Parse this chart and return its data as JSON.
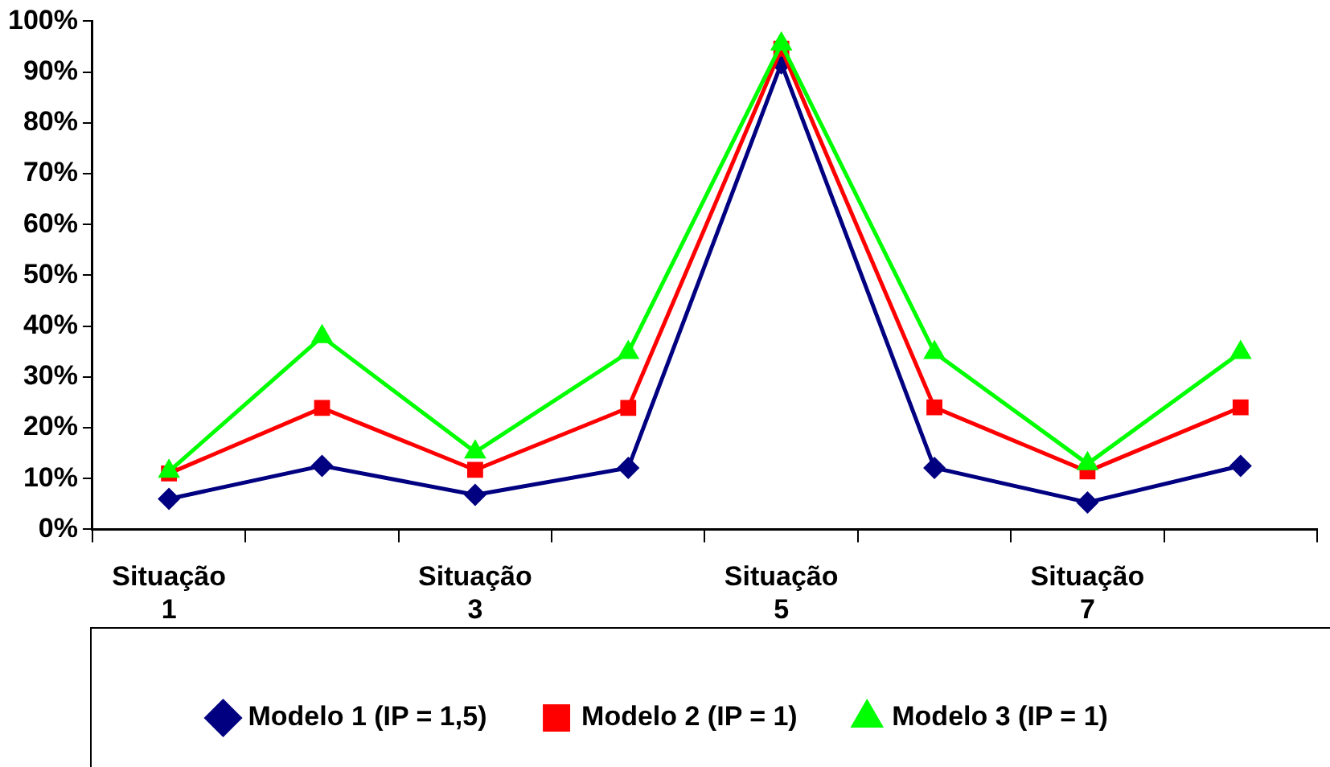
{
  "chart_data": {
    "type": "line",
    "categories": [
      "Situação 1",
      null,
      "Situação 3",
      null,
      "Situação 5",
      null,
      "Situação 7",
      null
    ],
    "series": [
      {
        "name": "Modelo 1 (IP = 1,5)",
        "color": "#000080",
        "marker": "diamond",
        "values": [
          6,
          12.5,
          6.8,
          12.1,
          91.7,
          12.1,
          5.3,
          12.5
        ]
      },
      {
        "name": "Modelo 2 (IP = 1)",
        "color": "#ff0000",
        "marker": "square",
        "values": [
          11,
          23.9,
          11.7,
          23.9,
          94.6,
          24,
          11.4,
          24
        ]
      },
      {
        "name": "Modelo 3 (IP = 1)",
        "color": "#00ff00",
        "marker": "triangle",
        "values": [
          11.4,
          37.9,
          15.2,
          34.8,
          95.5,
          34.8,
          12.9,
          34.8
        ]
      }
    ],
    "ylim": [
      0,
      100
    ],
    "yticks": [
      {
        "value": 0,
        "label": "0%"
      },
      {
        "value": 10,
        "label": "10%"
      },
      {
        "value": 20,
        "label": "20%"
      },
      {
        "value": 30,
        "label": "30%"
      },
      {
        "value": 40,
        "label": "40%"
      },
      {
        "value": 50,
        "label": "50%"
      },
      {
        "value": 60,
        "label": "60%"
      },
      {
        "value": 70,
        "label": "70%"
      },
      {
        "value": 80,
        "label": "80%"
      },
      {
        "value": 90,
        "label": "90%"
      },
      {
        "value": 100,
        "label": "100%"
      }
    ],
    "grid": false,
    "legend": "bottom",
    "line_style": "solid"
  }
}
